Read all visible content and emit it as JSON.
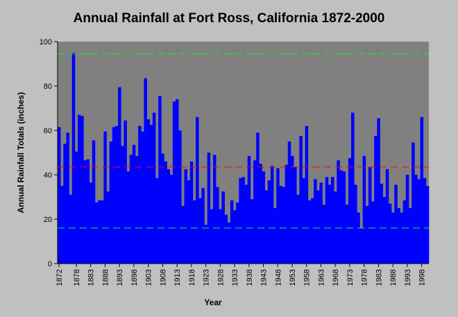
{
  "chart_data": {
    "type": "bar",
    "title": "Annual Rainfall at Fort Ross, California 1872-2000",
    "xlabel": "Year",
    "ylabel": "Annual Rainfall Totals (inches)",
    "ylim": [
      0,
      100
    ],
    "y_ticks": [
      0,
      20,
      40,
      60,
      80,
      100
    ],
    "x_ticks": [
      "1872",
      "1878",
      "1883",
      "1888",
      "1893",
      "1898",
      "1903",
      "1908",
      "1913",
      "1918",
      "1923",
      "1928",
      "1933",
      "1938",
      "1943",
      "1948",
      "1953",
      "1958",
      "1963",
      "1968",
      "1973",
      "1978",
      "1983",
      "1988",
      "1993",
      "1998"
    ],
    "grid": false,
    "legend": "none",
    "bar_color": "#0000ff",
    "plot_background": "#808080",
    "reference_lines": [
      {
        "value": 94.5,
        "color": "#00ff00",
        "style": "dashed"
      },
      {
        "value": 43.5,
        "color": "#ff0000",
        "style": "dashed"
      },
      {
        "value": 16.0,
        "color": "#00ff00",
        "style": "dashed"
      }
    ],
    "categories": [
      "1872",
      "1873",
      "1874",
      "1875",
      "1876",
      "1877",
      "1878",
      "1879",
      "1880",
      "1881",
      "1882",
      "1883",
      "1884",
      "1885",
      "1886",
      "1887",
      "1888",
      "1889",
      "1890",
      "1891",
      "1892",
      "1893",
      "1894",
      "1895",
      "1896",
      "1897",
      "1898",
      "1899",
      "1900",
      "1901",
      "1902",
      "1903",
      "1904",
      "1905",
      "1906",
      "1907",
      "1908",
      "1909",
      "1910",
      "1911",
      "1912",
      "1913",
      "1914",
      "1915",
      "1916",
      "1917",
      "1918",
      "1919",
      "1920",
      "1921",
      "1922",
      "1923",
      "1924",
      "1925",
      "1926",
      "1927",
      "1928",
      "1929",
      "1930",
      "1931",
      "1932",
      "1933",
      "1934",
      "1935",
      "1936",
      "1937",
      "1938",
      "1939",
      "1940",
      "1941",
      "1942",
      "1943",
      "1944",
      "1945",
      "1946",
      "1947",
      "1948",
      "1949",
      "1950",
      "1951",
      "1952",
      "1953",
      "1954",
      "1955",
      "1956",
      "1957",
      "1958",
      "1959",
      "1960",
      "1961",
      "1962",
      "1963",
      "1964",
      "1965",
      "1966",
      "1967",
      "1968",
      "1969",
      "1970",
      "1971",
      "1972",
      "1973",
      "1974",
      "1975",
      "1976",
      "1977",
      "1978",
      "1979",
      "1980",
      "1981",
      "1982",
      "1983",
      "1984",
      "1985",
      "1986",
      "1987",
      "1988",
      "1989",
      "1990",
      "1991",
      "1992",
      "1993",
      "1994",
      "1995",
      "1996",
      "1997",
      "1998",
      "1999",
      "2000"
    ],
    "values": [
      61.5,
      35,
      54,
      59,
      31,
      95,
      50.5,
      67,
      66.5,
      46.5,
      47,
      36.5,
      55.5,
      27.5,
      28.5,
      28.5,
      59.5,
      32.5,
      55,
      61.5,
      62,
      79.5,
      53,
      64.5,
      41.5,
      49,
      53.5,
      48.5,
      62,
      59.5,
      83.5,
      65,
      62.5,
      68,
      38.5,
      75.5,
      49.5,
      46,
      42.5,
      40,
      73,
      74,
      60,
      26,
      42.5,
      37.5,
      46,
      28.5,
      66,
      29.5,
      34,
      17.5,
      50,
      24.5,
      49,
      34.5,
      24.5,
      32.5,
      22,
      18.5,
      28.5,
      24,
      27.5,
      38.5,
      39,
      35.5,
      48.5,
      29,
      46.5,
      59,
      45,
      41.5,
      33,
      37.5,
      44,
      25,
      43,
      35,
      34.5,
      44.5,
      55,
      48.5,
      43.5,
      31,
      57.5,
      38.5,
      62,
      28.5,
      29.5,
      38,
      33,
      36.5,
      26.5,
      39,
      35.5,
      39,
      32.5,
      46.5,
      42,
      41.5,
      26.5,
      47.5,
      68,
      35.5,
      23,
      16,
      48.5,
      26,
      43.5,
      28,
      57.5,
      65.5,
      36,
      30,
      42.5,
      27,
      23,
      35.5,
      25,
      23,
      28.5,
      40,
      25,
      54.5,
      40,
      38,
      66,
      38.5,
      35
    ]
  }
}
